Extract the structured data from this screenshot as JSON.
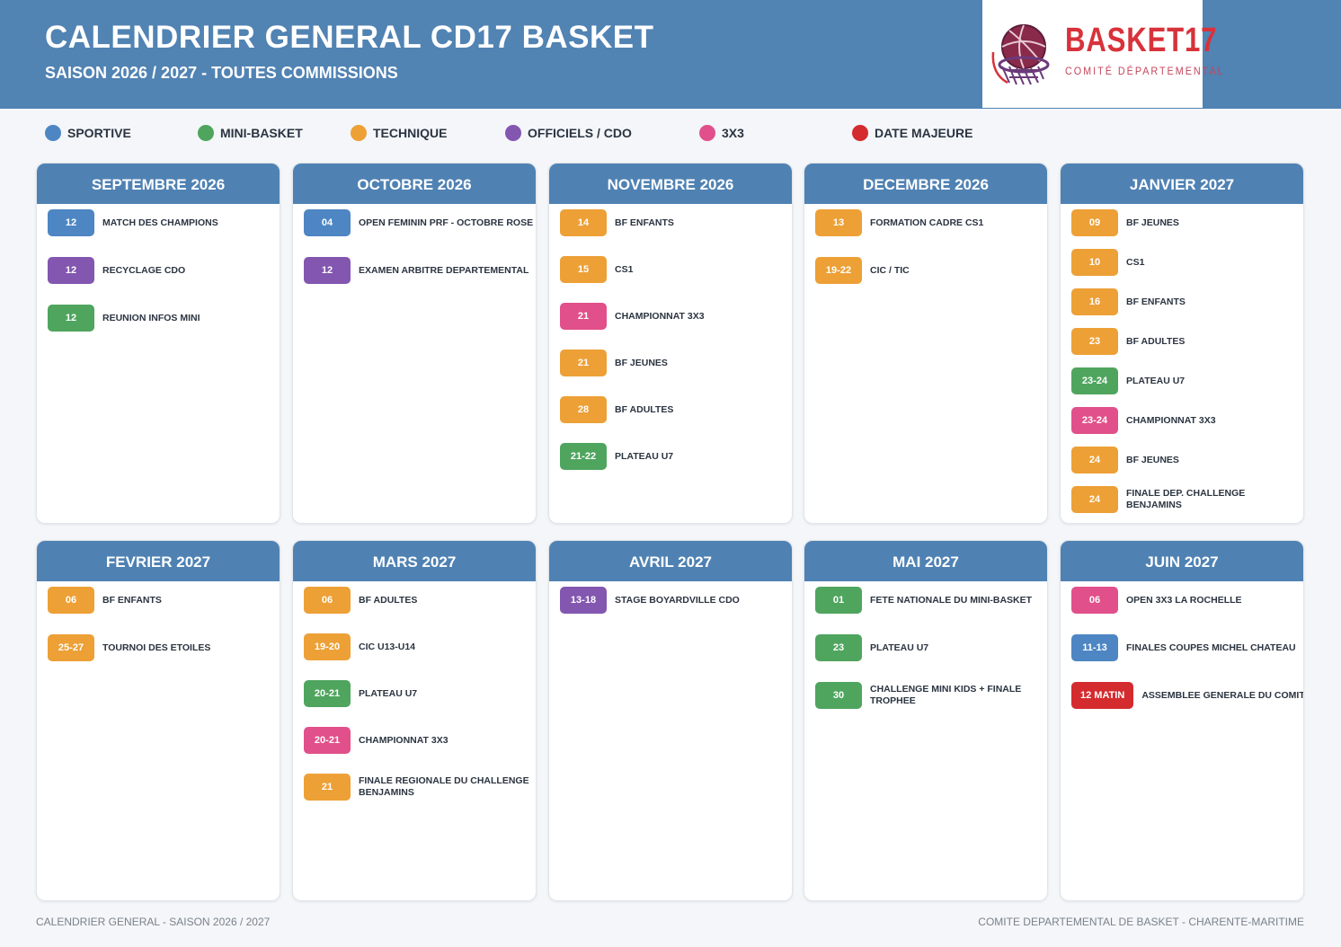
{
  "header": {
    "title": "CALENDRIER GENERAL CD17 BASKET",
    "subtitle": "SAISON 2026 / 2027 - TOUTES COMMISSIONS",
    "logo_text": "BASKET17",
    "logo_sub": "COMITÉ DÉPARTEMENTAL"
  },
  "colors": {
    "sportive": "#4d86c3",
    "mini": "#4fa55e",
    "technique": "#eda036",
    "officiels": "#8356b0",
    "x3": "#e1508a",
    "majeure": "#d42b2f"
  },
  "legend": [
    {
      "label": "SPORTIVE",
      "color": "sportive"
    },
    {
      "label": "MINI-BASKET",
      "color": "mini"
    },
    {
      "label": "TECHNIQUE",
      "color": "technique"
    },
    {
      "label": "OFFICIELS / CDO",
      "color": "officiels"
    },
    {
      "label": "3X3",
      "color": "x3"
    },
    {
      "label": "DATE MAJEURE",
      "color": "majeure"
    }
  ],
  "months": [
    {
      "title": "SEPTEMBRE 2026",
      "events": [
        {
          "date": "12",
          "label": "MATCH DES CHAMPIONS",
          "color": "sportive"
        },
        {
          "date": "12",
          "label": "RECYCLAGE CDO",
          "color": "officiels"
        },
        {
          "date": "12",
          "label": "REUNION INFOS MINI",
          "color": "mini"
        }
      ]
    },
    {
      "title": "OCTOBRE 2026",
      "events": [
        {
          "date": "04",
          "label": "OPEN FEMININ PRF - OCTOBRE ROSE",
          "color": "sportive"
        },
        {
          "date": "12",
          "label": "EXAMEN ARBITRE DEPARTEMENTAL",
          "color": "officiels"
        }
      ]
    },
    {
      "title": "NOVEMBRE 2026",
      "events": [
        {
          "date": "14",
          "label": "BF ENFANTS",
          "color": "technique"
        },
        {
          "date": "15",
          "label": "CS1",
          "color": "technique"
        },
        {
          "date": "21",
          "label": "CHAMPIONNAT 3X3",
          "color": "x3"
        },
        {
          "date": "21",
          "label": "BF JEUNES",
          "color": "technique"
        },
        {
          "date": "28",
          "label": "BF ADULTES",
          "color": "technique"
        },
        {
          "date": "21-22",
          "label": "PLATEAU U7",
          "color": "mini"
        }
      ]
    },
    {
      "title": "DECEMBRE 2026",
      "events": [
        {
          "date": "13",
          "label": "FORMATION CADRE CS1",
          "color": "technique"
        },
        {
          "date": "19-22",
          "label": "CIC / TIC",
          "color": "technique"
        }
      ]
    },
    {
      "title": "JANVIER 2027",
      "events": [
        {
          "date": "09",
          "label": "BF JEUNES",
          "color": "technique"
        },
        {
          "date": "10",
          "label": "CS1",
          "color": "technique"
        },
        {
          "date": "16",
          "label": "BF ENFANTS",
          "color": "technique"
        },
        {
          "date": "23",
          "label": "BF ADULTES",
          "color": "technique"
        },
        {
          "date": "23-24",
          "label": "PLATEAU U7",
          "color": "mini"
        },
        {
          "date": "23-24",
          "label": "CHAMPIONNAT 3X3",
          "color": "x3"
        },
        {
          "date": "24",
          "label": "BF JEUNES",
          "color": "technique"
        },
        {
          "date": "24",
          "label": "FINALE DEP. CHALLENGE BENJAMINS",
          "color": "technique"
        }
      ]
    },
    {
      "title": "FEVRIER 2027",
      "events": [
        {
          "date": "06",
          "label": "BF ENFANTS",
          "color": "technique"
        },
        {
          "date": "25-27",
          "label": "TOURNOI DES ETOILES",
          "color": "technique"
        }
      ]
    },
    {
      "title": "MARS 2027",
      "events": [
        {
          "date": "06",
          "label": "BF ADULTES",
          "color": "technique"
        },
        {
          "date": "19-20",
          "label": "CIC U13-U14",
          "color": "technique"
        },
        {
          "date": "20-21",
          "label": "PLATEAU U7",
          "color": "mini"
        },
        {
          "date": "20-21",
          "label": "CHAMPIONNAT 3X3",
          "color": "x3"
        },
        {
          "date": "21",
          "label": "FINALE REGIONALE DU CHALLENGE BENJAMINS",
          "color": "technique"
        }
      ]
    },
    {
      "title": "AVRIL 2027",
      "events": [
        {
          "date": "13-18",
          "label": "STAGE BOYARDVILLE CDO",
          "color": "officiels"
        }
      ]
    },
    {
      "title": "MAI 2027",
      "events": [
        {
          "date": "01",
          "label": "FETE NATIONALE DU MINI-BASKET",
          "color": "mini"
        },
        {
          "date": "23",
          "label": "PLATEAU U7",
          "color": "mini"
        },
        {
          "date": "30",
          "label": "CHALLENGE MINI KIDS + FINALE TROPHEE",
          "color": "mini"
        }
      ]
    },
    {
      "title": "JUIN 2027",
      "events": [
        {
          "date": "06",
          "label": "OPEN 3X3 LA ROCHELLE",
          "color": "x3"
        },
        {
          "date": "11-13",
          "label": "FINALES COUPES MICHEL CHATEAU",
          "color": "sportive"
        },
        {
          "date": "12 MATIN",
          "label": "ASSEMBLEE GENERALE DU COMITE",
          "color": "majeure"
        }
      ]
    }
  ],
  "footer": {
    "left": "CALENDRIER GENERAL - SAISON 2026 / 2027",
    "right": "COMITE DEPARTEMENTAL DE BASKET - CHARENTE-MARITIME"
  }
}
